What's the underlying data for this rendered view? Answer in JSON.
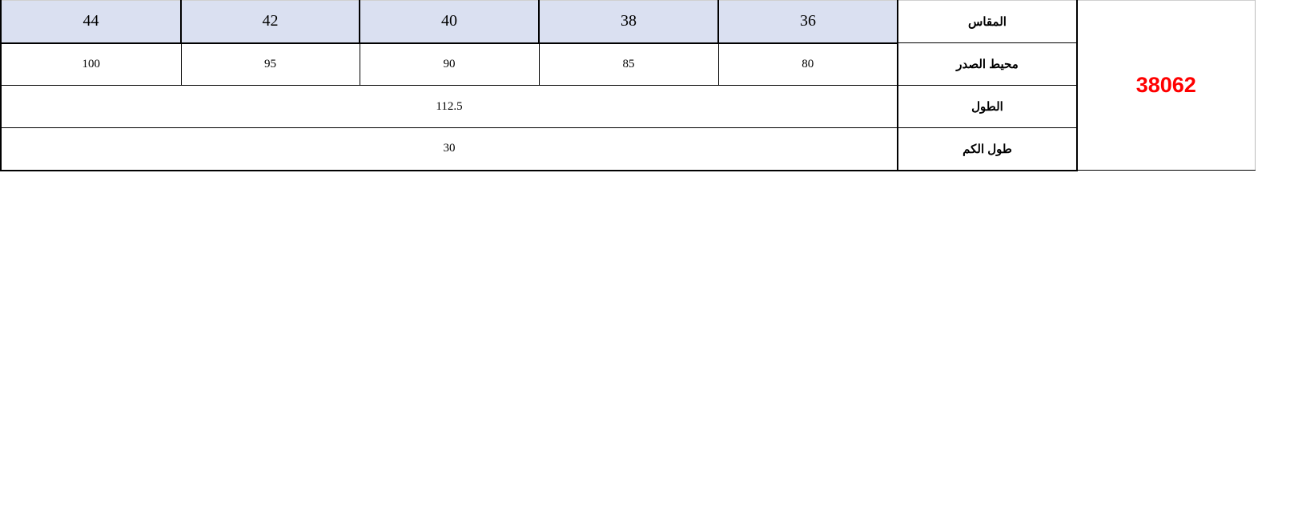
{
  "table": {
    "code": "38062",
    "code_color": "#ff0000",
    "header_bg": "#dae0f1",
    "rows": {
      "size": {
        "label": "المقاس",
        "values": [
          "44",
          "42",
          "40",
          "38",
          "36"
        ]
      },
      "chest": {
        "label": "محيط الصدر",
        "values": [
          "100",
          "95",
          "90",
          "85",
          "80"
        ]
      },
      "length": {
        "label": "الطول",
        "value": "112.5"
      },
      "sleeve": {
        "label": "طول الكم",
        "value": "30"
      }
    }
  }
}
